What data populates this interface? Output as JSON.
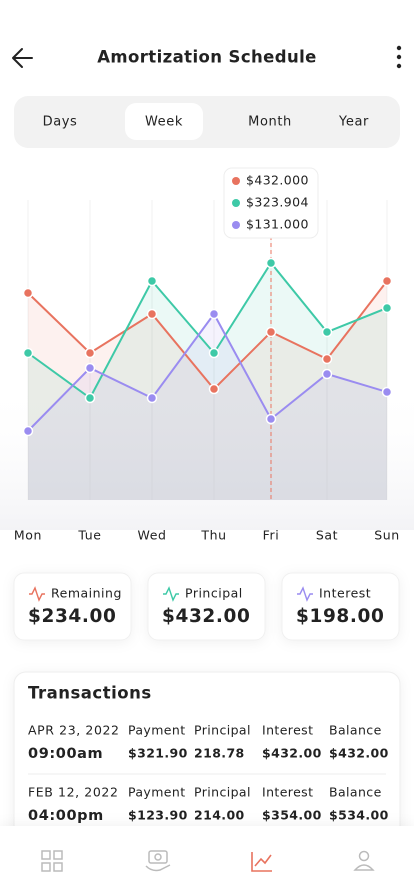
{
  "header": {
    "title": "Amortization Schedule"
  },
  "tabs": [
    "Days",
    "Week",
    "Month",
    "Year"
  ],
  "chart_data": {
    "type": "line",
    "categories": [
      "Mon",
      "Tue",
      "Wed",
      "Thu",
      "Fri",
      "Sat",
      "Sun"
    ],
    "series": [
      {
        "name": "Remaining",
        "color": "#e8735f",
        "values": [
          69,
          49,
          62,
          37,
          56,
          47,
          73
        ]
      },
      {
        "name": "Principal",
        "color": "#3ec9a7",
        "values": [
          49,
          34,
          73,
          49,
          79,
          56,
          64
        ]
      },
      {
        "name": "Interest",
        "color": "#9a8cf0",
        "values": [
          23,
          44,
          34,
          62,
          27,
          42,
          36
        ]
      }
    ],
    "ylim": [
      0,
      100
    ],
    "tooltip": [
      "$432.000",
      "$323.904",
      "$131.000"
    ]
  },
  "summary": [
    "$234.00",
    "$432.00",
    "$198.00"
  ],
  "transactions": {
    "title": "Transactions",
    "columns": [
      "Payment",
      "Principal",
      "Interest",
      "Balance"
    ],
    "rows": [
      {
        "date": "APR 23, 2022",
        "time": "09:00am",
        "values": [
          "$321.90",
          "218.78",
          "$432.00",
          "$432.00"
        ]
      },
      {
        "date": "FEB 12, 2022",
        "time": "04:00pm",
        "values": [
          "$123.90",
          "214.00",
          "$354.00",
          "$534.00"
        ]
      }
    ]
  }
}
